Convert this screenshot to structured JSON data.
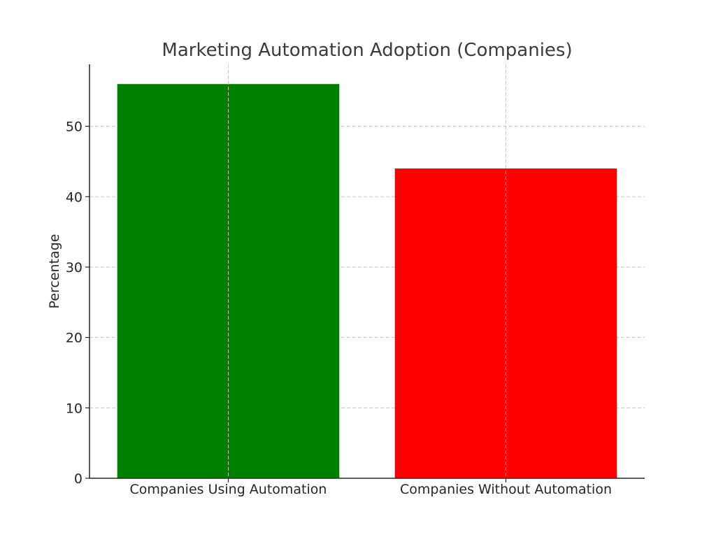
{
  "chart_data": {
    "type": "bar",
    "title": "Marketing Automation Adoption (Companies)",
    "xlabel": "",
    "ylabel": "Percentage",
    "categories": [
      "Companies Using Automation",
      "Companies Without Automation"
    ],
    "values": [
      56,
      44
    ],
    "colors": [
      "#008000",
      "#ff0000"
    ],
    "ylim": [
      0,
      58.8
    ],
    "yticks": [
      0,
      10,
      20,
      30,
      40,
      50
    ],
    "grid": true
  }
}
